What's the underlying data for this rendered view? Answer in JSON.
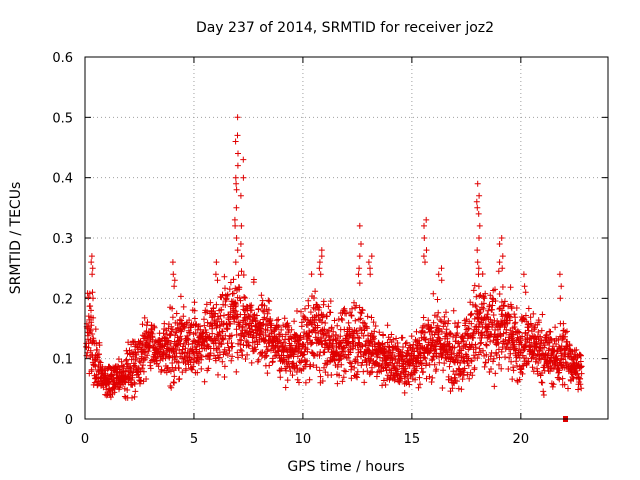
{
  "chart_data": {
    "type": "scatter",
    "title": "Day 237 of 2014, SRMTID for receiver joz2",
    "xlabel": "GPS time / hours",
    "ylabel": "SRMTID / TECUs",
    "xlim": [
      0,
      24
    ],
    "ylim": [
      0,
      0.6
    ],
    "xticks": [
      0,
      5,
      10,
      15,
      20
    ],
    "xtick_labels": [
      "0",
      "5",
      "10",
      "15",
      "20"
    ],
    "yticks": [
      0,
      0.1,
      0.2,
      0.3,
      0.4,
      0.5,
      0.6
    ],
    "ytick_labels": [
      "0",
      "0.1",
      "0.2",
      "0.3",
      "0.4",
      "0.5",
      "0.6"
    ],
    "grid": true,
    "marker": "+",
    "color": "#e00000",
    "profile": {
      "description": "approximate envelope of the dense point cloud, read from axes",
      "x": [
        0.0,
        0.2,
        0.4,
        0.8,
        1.2,
        1.6,
        2.0,
        2.5,
        3.0,
        3.5,
        4.0,
        4.5,
        5.0,
        5.5,
        6.0,
        6.5,
        7.0,
        7.5,
        8.0,
        8.5,
        9.0,
        9.5,
        10.0,
        10.5,
        11.0,
        11.5,
        12.0,
        12.5,
        13.0,
        13.5,
        14.0,
        14.5,
        15.0,
        15.5,
        16.0,
        16.5,
        17.0,
        17.5,
        18.0,
        18.5,
        19.0,
        19.5,
        20.0,
        20.5,
        21.0,
        21.5,
        22.0,
        22.5,
        22.8
      ],
      "mean": [
        0.12,
        0.15,
        0.1,
        0.07,
        0.06,
        0.07,
        0.08,
        0.1,
        0.13,
        0.11,
        0.12,
        0.13,
        0.12,
        0.13,
        0.14,
        0.16,
        0.18,
        0.15,
        0.15,
        0.14,
        0.12,
        0.11,
        0.12,
        0.15,
        0.13,
        0.12,
        0.13,
        0.14,
        0.12,
        0.11,
        0.1,
        0.09,
        0.1,
        0.12,
        0.13,
        0.12,
        0.11,
        0.12,
        0.15,
        0.14,
        0.15,
        0.14,
        0.12,
        0.13,
        0.11,
        0.1,
        0.11,
        0.09,
        0.08
      ],
      "spread": [
        0.04,
        0.06,
        0.04,
        0.02,
        0.02,
        0.02,
        0.03,
        0.03,
        0.03,
        0.03,
        0.04,
        0.04,
        0.04,
        0.04,
        0.04,
        0.05,
        0.06,
        0.04,
        0.04,
        0.04,
        0.03,
        0.03,
        0.04,
        0.05,
        0.04,
        0.04,
        0.04,
        0.05,
        0.04,
        0.03,
        0.03,
        0.03,
        0.03,
        0.04,
        0.04,
        0.04,
        0.04,
        0.04,
        0.06,
        0.05,
        0.05,
        0.04,
        0.04,
        0.04,
        0.04,
        0.03,
        0.04,
        0.02,
        0.02
      ]
    },
    "peaks": [
      {
        "x": 0.3,
        "values": [
          0.27,
          0.26,
          0.25,
          0.24,
          0.21,
          0.2,
          0.18
        ]
      },
      {
        "x": 4.05,
        "values": [
          0.26,
          0.24,
          0.23,
          0.22
        ]
      },
      {
        "x": 6.05,
        "values": [
          0.26,
          0.24,
          0.23
        ]
      },
      {
        "x": 6.95,
        "values": [
          0.5,
          0.47,
          0.46,
          0.44,
          0.42,
          0.4,
          0.39,
          0.38,
          0.35,
          0.33,
          0.32,
          0.3,
          0.28,
          0.26
        ]
      },
      {
        "x": 7.2,
        "values": [
          0.43,
          0.4,
          0.37,
          0.32,
          0.29,
          0.27
        ]
      },
      {
        "x": 10.8,
        "values": [
          0.28,
          0.27,
          0.26,
          0.25,
          0.24
        ]
      },
      {
        "x": 12.6,
        "values": [
          0.32,
          0.29,
          0.27,
          0.25,
          0.24
        ]
      },
      {
        "x": 13.1,
        "values": [
          0.27,
          0.26,
          0.25,
          0.24
        ]
      },
      {
        "x": 15.6,
        "values": [
          0.33,
          0.32,
          0.3,
          0.28,
          0.27,
          0.26
        ]
      },
      {
        "x": 16.3,
        "values": [
          0.25,
          0.24,
          0.23
        ]
      },
      {
        "x": 18.05,
        "values": [
          0.39,
          0.37,
          0.36,
          0.35,
          0.34,
          0.32,
          0.3,
          0.28,
          0.26,
          0.25,
          0.24,
          0.22
        ]
      },
      {
        "x": 19.1,
        "values": [
          0.3,
          0.29,
          0.27,
          0.26,
          0.25
        ]
      },
      {
        "x": 20.2,
        "values": [
          0.24,
          0.22,
          0.21
        ]
      },
      {
        "x": 21.8,
        "values": [
          0.24,
          0.22,
          0.2
        ]
      }
    ],
    "isolated_points": [
      {
        "x": 22.05,
        "y": 0.0
      }
    ]
  }
}
